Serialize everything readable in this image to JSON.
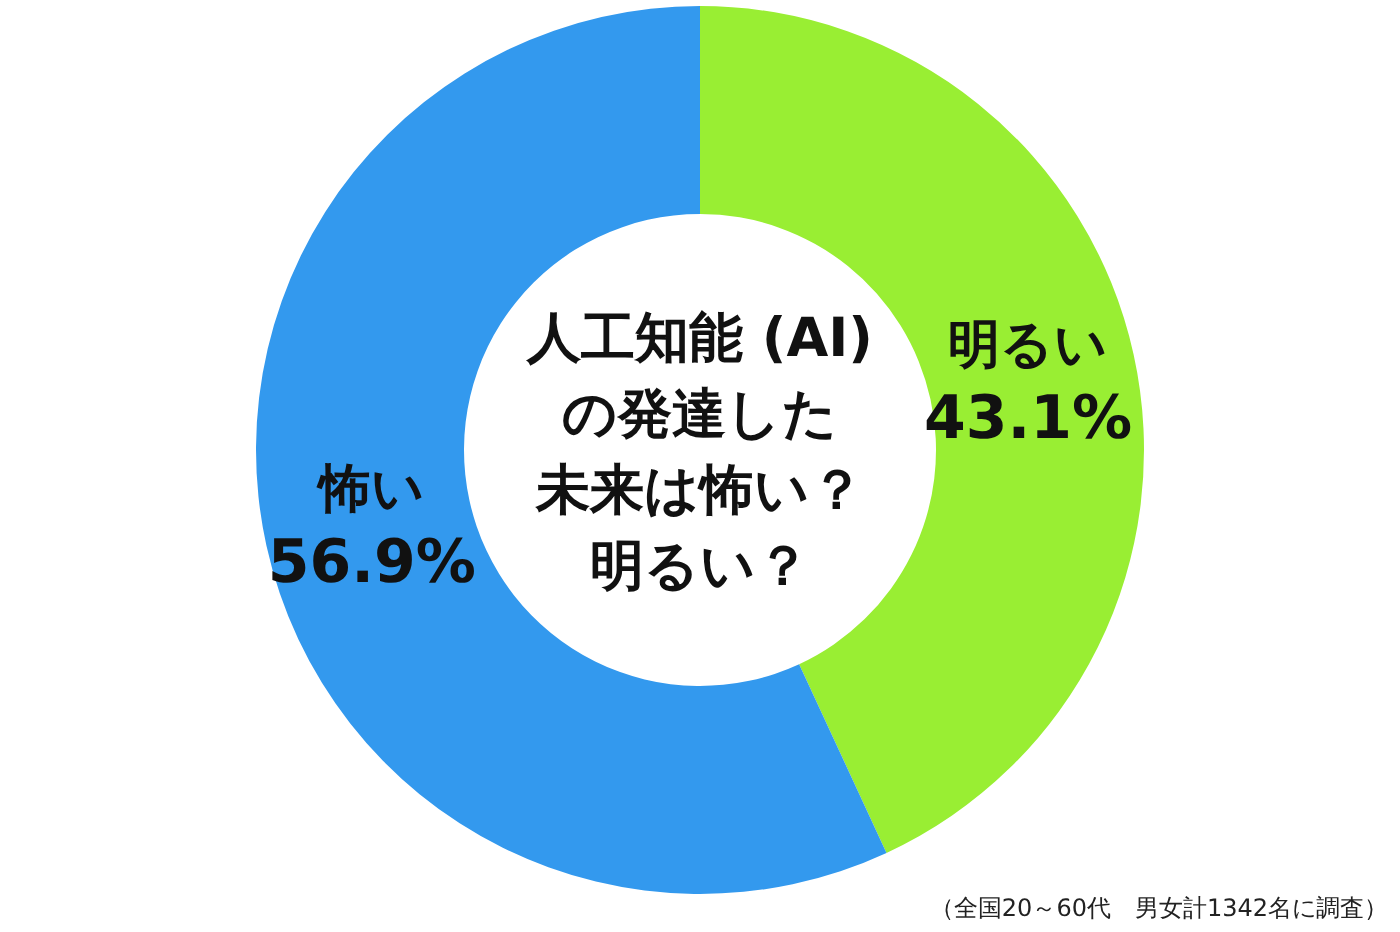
{
  "chart_data": {
    "type": "donut",
    "title": "人工知能 (AI)の発達した未来は怖い？明るい？",
    "categories": [
      "明るい",
      "怖い"
    ],
    "values": [
      43.1,
      56.9
    ],
    "colors": [
      "#99ee33",
      "#3399ee"
    ],
    "value_labels": [
      "43.1%",
      "56.9%"
    ],
    "legend": false,
    "annotations": [
      "（全国20～60代　男女計1342名に調査）"
    ]
  }
}
